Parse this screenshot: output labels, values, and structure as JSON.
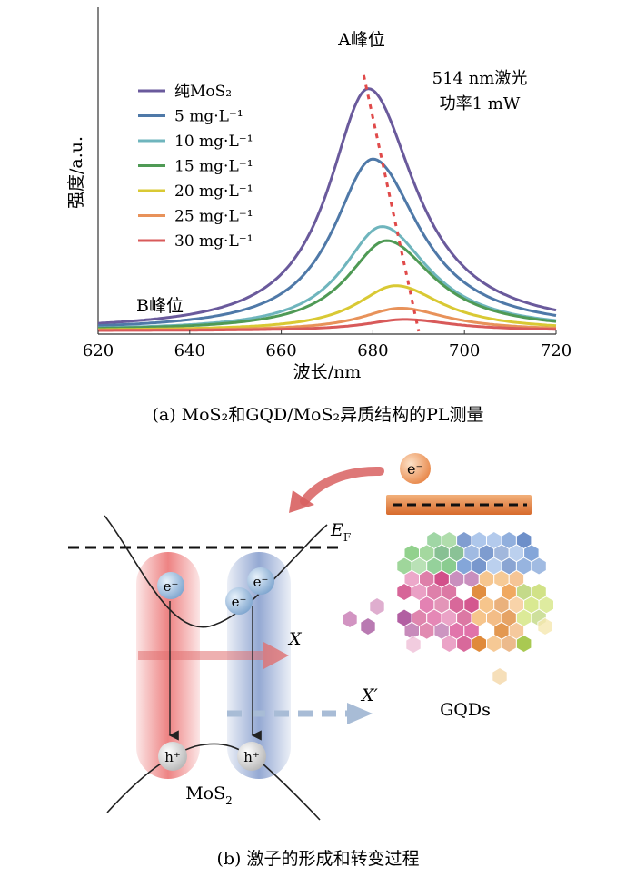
{
  "panel_a": {
    "caption": "(a) MoS₂和GQD/MoS₂异质结构的PL测量",
    "annotations": {
      "peak_a": "A峰位",
      "peak_b": "B峰位",
      "laser_line1": "514 nm激光",
      "laser_line2": "功率1 mW"
    }
  },
  "chart_data": {
    "type": "line",
    "xlabel": "波长/nm",
    "ylabel": "强度/a.u.",
    "xlim": [
      620,
      720
    ],
    "ylim": [
      0,
      100
    ],
    "x_ticks": [
      620,
      640,
      660,
      680,
      700,
      720
    ],
    "grid": false,
    "legend_position": "top-left",
    "series": [
      {
        "name": "纯MoS₂",
        "color": "#6a5a9c",
        "peak_x": 679,
        "peak_y": 86
      },
      {
        "name": "5 mg·L⁻¹",
        "color": "#4f79a8",
        "peak_x": 680,
        "peak_y": 61
      },
      {
        "name": "10 mg·L⁻¹",
        "color": "#6fb5bd",
        "peak_x": 682,
        "peak_y": 37
      },
      {
        "name": "15 mg·L⁻¹",
        "color": "#4f9a55",
        "peak_x": 683,
        "peak_y": 32
      },
      {
        "name": "20 mg·L⁻¹",
        "color": "#d9c934",
        "peak_x": 685,
        "peak_y": 16
      },
      {
        "name": "25 mg·L⁻¹",
        "color": "#e8925a",
        "peak_x": 686,
        "peak_y": 8
      },
      {
        "name": "30 mg·L⁻¹",
        "color": "#d85a5a",
        "peak_x": 687,
        "peak_y": 4
      }
    ],
    "trend_line": {
      "x": [
        678,
        690
      ],
      "y": [
        92,
        1
      ],
      "color": "#e04a4a"
    }
  },
  "panel_b": {
    "caption": "(b) 激子的形成和转变过程",
    "labels": {
      "fermi": "E",
      "fermi_sub": "F",
      "exciton": "X",
      "trion": "X′",
      "gqds": "GQDs",
      "mos2": "MoS",
      "mos2_sub": "2",
      "electron": "e⁻",
      "hole": "h⁺"
    }
  }
}
